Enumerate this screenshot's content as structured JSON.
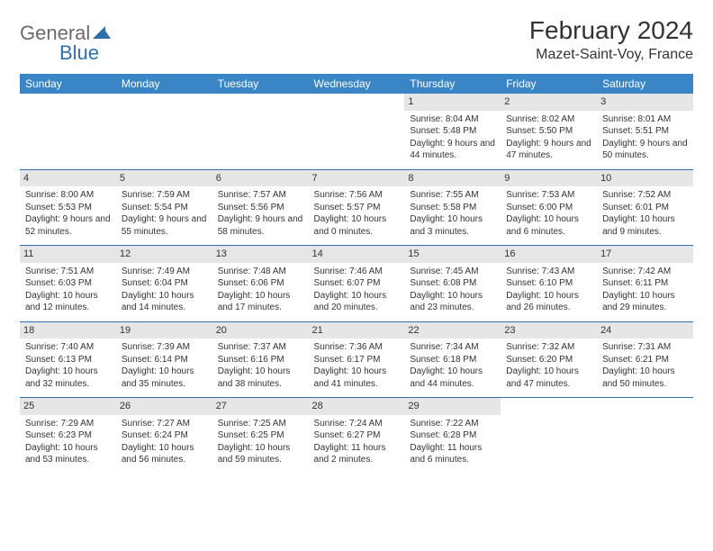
{
  "logo": {
    "part1": "General",
    "part2": "Blue"
  },
  "title": "February 2024",
  "location": "Mazet-Saint-Voy, France",
  "colors": {
    "header_bg": "#3a85c6",
    "header_text": "#ffffff",
    "rule": "#2f6fab",
    "daynum_bg": "#e6e6e6",
    "text": "#333333",
    "logo_gray": "#6b6b6b",
    "logo_blue": "#2f6fab"
  },
  "day_headers": [
    "Sunday",
    "Monday",
    "Tuesday",
    "Wednesday",
    "Thursday",
    "Friday",
    "Saturday"
  ],
  "weeks": [
    [
      {
        "n": "",
        "lines": []
      },
      {
        "n": "",
        "lines": []
      },
      {
        "n": "",
        "lines": []
      },
      {
        "n": "",
        "lines": []
      },
      {
        "n": "1",
        "lines": [
          "Sunrise: 8:04 AM",
          "Sunset: 5:48 PM",
          "Daylight: 9 hours and 44 minutes."
        ]
      },
      {
        "n": "2",
        "lines": [
          "Sunrise: 8:02 AM",
          "Sunset: 5:50 PM",
          "Daylight: 9 hours and 47 minutes."
        ]
      },
      {
        "n": "3",
        "lines": [
          "Sunrise: 8:01 AM",
          "Sunset: 5:51 PM",
          "Daylight: 9 hours and 50 minutes."
        ]
      }
    ],
    [
      {
        "n": "4",
        "lines": [
          "Sunrise: 8:00 AM",
          "Sunset: 5:53 PM",
          "Daylight: 9 hours and 52 minutes."
        ]
      },
      {
        "n": "5",
        "lines": [
          "Sunrise: 7:59 AM",
          "Sunset: 5:54 PM",
          "Daylight: 9 hours and 55 minutes."
        ]
      },
      {
        "n": "6",
        "lines": [
          "Sunrise: 7:57 AM",
          "Sunset: 5:56 PM",
          "Daylight: 9 hours and 58 minutes."
        ]
      },
      {
        "n": "7",
        "lines": [
          "Sunrise: 7:56 AM",
          "Sunset: 5:57 PM",
          "Daylight: 10 hours and 0 minutes."
        ]
      },
      {
        "n": "8",
        "lines": [
          "Sunrise: 7:55 AM",
          "Sunset: 5:58 PM",
          "Daylight: 10 hours and 3 minutes."
        ]
      },
      {
        "n": "9",
        "lines": [
          "Sunrise: 7:53 AM",
          "Sunset: 6:00 PM",
          "Daylight: 10 hours and 6 minutes."
        ]
      },
      {
        "n": "10",
        "lines": [
          "Sunrise: 7:52 AM",
          "Sunset: 6:01 PM",
          "Daylight: 10 hours and 9 minutes."
        ]
      }
    ],
    [
      {
        "n": "11",
        "lines": [
          "Sunrise: 7:51 AM",
          "Sunset: 6:03 PM",
          "Daylight: 10 hours and 12 minutes."
        ]
      },
      {
        "n": "12",
        "lines": [
          "Sunrise: 7:49 AM",
          "Sunset: 6:04 PM",
          "Daylight: 10 hours and 14 minutes."
        ]
      },
      {
        "n": "13",
        "lines": [
          "Sunrise: 7:48 AM",
          "Sunset: 6:06 PM",
          "Daylight: 10 hours and 17 minutes."
        ]
      },
      {
        "n": "14",
        "lines": [
          "Sunrise: 7:46 AM",
          "Sunset: 6:07 PM",
          "Daylight: 10 hours and 20 minutes."
        ]
      },
      {
        "n": "15",
        "lines": [
          "Sunrise: 7:45 AM",
          "Sunset: 6:08 PM",
          "Daylight: 10 hours and 23 minutes."
        ]
      },
      {
        "n": "16",
        "lines": [
          "Sunrise: 7:43 AM",
          "Sunset: 6:10 PM",
          "Daylight: 10 hours and 26 minutes."
        ]
      },
      {
        "n": "17",
        "lines": [
          "Sunrise: 7:42 AM",
          "Sunset: 6:11 PM",
          "Daylight: 10 hours and 29 minutes."
        ]
      }
    ],
    [
      {
        "n": "18",
        "lines": [
          "Sunrise: 7:40 AM",
          "Sunset: 6:13 PM",
          "Daylight: 10 hours and 32 minutes."
        ]
      },
      {
        "n": "19",
        "lines": [
          "Sunrise: 7:39 AM",
          "Sunset: 6:14 PM",
          "Daylight: 10 hours and 35 minutes."
        ]
      },
      {
        "n": "20",
        "lines": [
          "Sunrise: 7:37 AM",
          "Sunset: 6:16 PM",
          "Daylight: 10 hours and 38 minutes."
        ]
      },
      {
        "n": "21",
        "lines": [
          "Sunrise: 7:36 AM",
          "Sunset: 6:17 PM",
          "Daylight: 10 hours and 41 minutes."
        ]
      },
      {
        "n": "22",
        "lines": [
          "Sunrise: 7:34 AM",
          "Sunset: 6:18 PM",
          "Daylight: 10 hours and 44 minutes."
        ]
      },
      {
        "n": "23",
        "lines": [
          "Sunrise: 7:32 AM",
          "Sunset: 6:20 PM",
          "Daylight: 10 hours and 47 minutes."
        ]
      },
      {
        "n": "24",
        "lines": [
          "Sunrise: 7:31 AM",
          "Sunset: 6:21 PM",
          "Daylight: 10 hours and 50 minutes."
        ]
      }
    ],
    [
      {
        "n": "25",
        "lines": [
          "Sunrise: 7:29 AM",
          "Sunset: 6:23 PM",
          "Daylight: 10 hours and 53 minutes."
        ]
      },
      {
        "n": "26",
        "lines": [
          "Sunrise: 7:27 AM",
          "Sunset: 6:24 PM",
          "Daylight: 10 hours and 56 minutes."
        ]
      },
      {
        "n": "27",
        "lines": [
          "Sunrise: 7:25 AM",
          "Sunset: 6:25 PM",
          "Daylight: 10 hours and 59 minutes."
        ]
      },
      {
        "n": "28",
        "lines": [
          "Sunrise: 7:24 AM",
          "Sunset: 6:27 PM",
          "Daylight: 11 hours and 2 minutes."
        ]
      },
      {
        "n": "29",
        "lines": [
          "Sunrise: 7:22 AM",
          "Sunset: 6:28 PM",
          "Daylight: 11 hours and 6 minutes."
        ]
      },
      {
        "n": "",
        "lines": []
      },
      {
        "n": "",
        "lines": []
      }
    ]
  ]
}
